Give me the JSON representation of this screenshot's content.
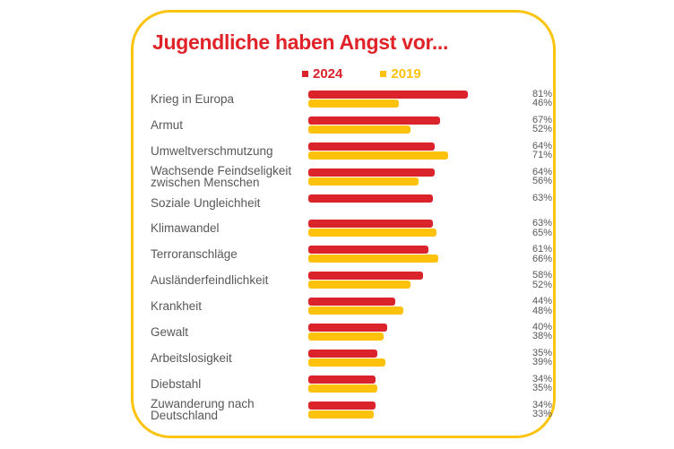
{
  "colors": {
    "red_2024": "#da232b",
    "yellow_2019": "#fec20d",
    "card_border_yellow": "#fcc40e",
    "title_red": "#e02329",
    "text_gray": "#58585a",
    "background": "#ffffff"
  },
  "legend": {
    "items": [
      {
        "label": "2024",
        "color": "#da232b"
      },
      {
        "label": "2019",
        "color": "#fec20d"
      }
    ]
  },
  "chart_data": {
    "type": "bar",
    "orientation": "horizontal",
    "title": "Jugendliche haben Angst vor...",
    "unit": "%",
    "xlim": [
      0,
      100
    ],
    "grid": false,
    "legend_position": "top",
    "categories": [
      "Krieg in Europa",
      "Armut",
      "Umweltverschmutzung",
      "Wachsende Feindseligkeit zwischen Menschen",
      "Soziale Ungleichheit",
      "Klimawandel",
      "Terroranschläge",
      "Ausländerfeindlichkeit",
      "Krankheit",
      "Gewalt",
      "Arbeitslosigkeit",
      "Diebstahl",
      "Zuwanderung nach Deutschland"
    ],
    "series": [
      {
        "name": "2024",
        "color": "#da232b",
        "values": [
          81,
          67,
          64,
          64,
          63,
          63,
          61,
          58,
          44,
          40,
          35,
          34,
          34
        ]
      },
      {
        "name": "2019",
        "color": "#fec20d",
        "values": [
          46,
          52,
          71,
          56,
          null,
          65,
          66,
          52,
          48,
          38,
          39,
          35,
          33
        ]
      }
    ],
    "value_labels": [
      [
        "81%",
        "46%"
      ],
      [
        "67%",
        "52%"
      ],
      [
        "64%",
        "71%"
      ],
      [
        "64%",
        "56%"
      ],
      [
        "63%",
        null
      ],
      [
        "63%",
        "65%"
      ],
      [
        "61%",
        "66%"
      ],
      [
        "58%",
        "52%"
      ],
      [
        "44%",
        "48%"
      ],
      [
        "40%",
        "38%"
      ],
      [
        "35%",
        "39%"
      ],
      [
        "34%",
        "35%"
      ],
      [
        "34%",
        "33%"
      ]
    ]
  }
}
